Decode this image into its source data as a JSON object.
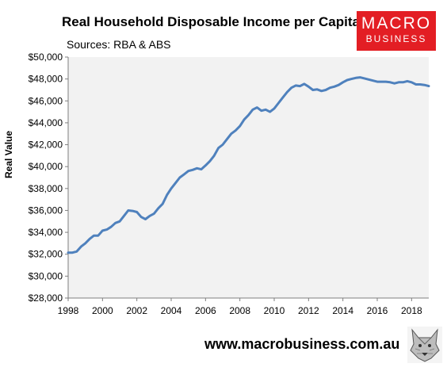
{
  "header": {
    "title": "Real Household Disposable Income per Capita",
    "subtitle": "Sources: RBA & ABS"
  },
  "logo": {
    "line1": "MACRO",
    "line2": "BUSINESS",
    "color": "#e31e24"
  },
  "footer": {
    "website": "www.macrobusiness.com.au",
    "wolf_icon": "wolf-head-icon"
  },
  "chart_data": {
    "type": "line",
    "title": "Real Household Disposable Income per Capita",
    "subtitle": "Sources: RBA & ABS",
    "xlabel": "",
    "ylabel": "Real Value",
    "xlim": [
      1998,
      2019
    ],
    "ylim": [
      28000,
      50000
    ],
    "x_ticks": [
      1998,
      2000,
      2002,
      2004,
      2006,
      2008,
      2010,
      2012,
      2014,
      2016,
      2018
    ],
    "x_tick_labels": [
      "1998",
      "2000",
      "2002",
      "2004",
      "2006",
      "2008",
      "2010",
      "2012",
      "2014",
      "2016",
      "2018"
    ],
    "y_ticks": [
      28000,
      30000,
      32000,
      34000,
      36000,
      38000,
      40000,
      42000,
      44000,
      46000,
      48000,
      50000
    ],
    "y_tick_labels": [
      "$28,000",
      "$30,000",
      "$32,000",
      "$34,000",
      "$36,000",
      "$38,000",
      "$40,000",
      "$42,000",
      "$44,000",
      "$46,000",
      "$48,000",
      "$50,000"
    ],
    "grid": false,
    "plot_background": "#f2f2f2",
    "line_color": "#4f81bd",
    "series": [
      {
        "x": [
          1998.0,
          1998.25,
          1998.5,
          1998.75,
          1999.0,
          1999.25,
          1999.5,
          1999.75,
          2000.0,
          2000.25,
          2000.5,
          2000.75,
          2001.0,
          2001.25,
          2001.5,
          2001.75,
          2002.0,
          2002.25,
          2002.5,
          2002.75,
          2003.0,
          2003.25,
          2003.5,
          2003.75,
          2004.0,
          2004.25,
          2004.5,
          2004.75,
          2005.0,
          2005.25,
          2005.5,
          2005.75,
          2006.0,
          2006.25,
          2006.5,
          2006.75,
          2007.0,
          2007.25,
          2007.5,
          2007.75,
          2008.0,
          2008.25,
          2008.5,
          2008.75,
          2009.0,
          2009.25,
          2009.5,
          2009.75,
          2010.0,
          2010.25,
          2010.5,
          2010.75,
          2011.0,
          2011.25,
          2011.5,
          2011.75,
          2012.0,
          2012.25,
          2012.5,
          2012.75,
          2013.0,
          2013.25,
          2013.5,
          2013.75,
          2014.0,
          2014.25,
          2014.5,
          2014.75,
          2015.0,
          2015.25,
          2015.5,
          2015.75,
          2016.0,
          2016.25,
          2016.5,
          2016.75,
          2017.0,
          2017.25,
          2017.5,
          2017.75,
          2018.0,
          2018.25,
          2018.5,
          2018.75,
          2019.0
        ],
        "values": [
          32150,
          32150,
          32250,
          32700,
          33000,
          33400,
          33700,
          33700,
          34150,
          34250,
          34500,
          34850,
          35000,
          35500,
          36000,
          35950,
          35850,
          35400,
          35200,
          35500,
          35700,
          36200,
          36600,
          37400,
          38000,
          38500,
          39000,
          39300,
          39600,
          39700,
          39850,
          39750,
          40100,
          40500,
          41000,
          41700,
          42000,
          42500,
          43000,
          43300,
          43700,
          44300,
          44700,
          45200,
          45400,
          45100,
          45200,
          45000,
          45300,
          45800,
          46300,
          46800,
          47200,
          47400,
          47350,
          47550,
          47300,
          47000,
          47050,
          46900,
          47000,
          47200,
          47300,
          47450,
          47700,
          47900,
          48000,
          48100,
          48150,
          48050,
          47950,
          47850,
          47750,
          47750,
          47750,
          47700,
          47600,
          47700,
          47700,
          47800,
          47700,
          47500,
          47500,
          47450,
          47350
        ]
      }
    ]
  }
}
